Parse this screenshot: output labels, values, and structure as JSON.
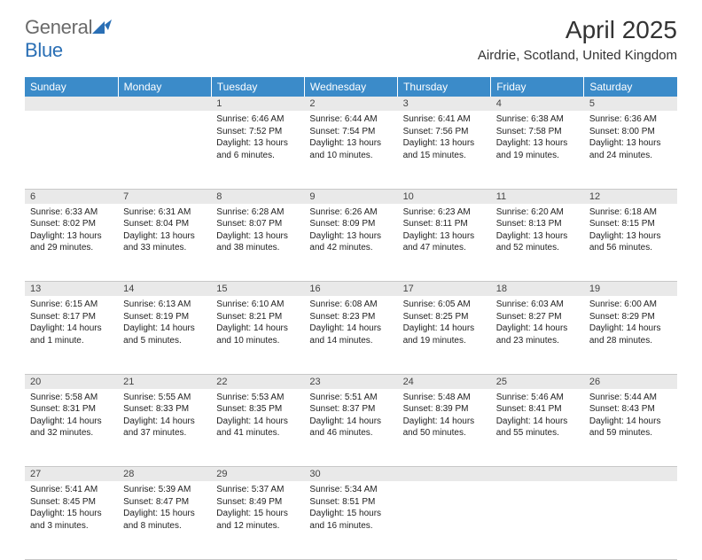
{
  "brand": {
    "part1": "General",
    "part2": "Blue"
  },
  "title": "April 2025",
  "location": "Airdrie, Scotland, United Kingdom",
  "colors": {
    "header_bg": "#3b8bc9",
    "header_text": "#ffffff",
    "daynum_bg": "#e9e9e9",
    "border": "#c8c8c8",
    "brand_gray": "#6a6a6a",
    "brand_blue": "#2a6fb5",
    "text": "#222222"
  },
  "day_headers": [
    "Sunday",
    "Monday",
    "Tuesday",
    "Wednesday",
    "Thursday",
    "Friday",
    "Saturday"
  ],
  "weeks": [
    [
      null,
      null,
      {
        "n": "1",
        "sr": "6:46 AM",
        "ss": "7:52 PM",
        "dl": "13 hours and 6 minutes."
      },
      {
        "n": "2",
        "sr": "6:44 AM",
        "ss": "7:54 PM",
        "dl": "13 hours and 10 minutes."
      },
      {
        "n": "3",
        "sr": "6:41 AM",
        "ss": "7:56 PM",
        "dl": "13 hours and 15 minutes."
      },
      {
        "n": "4",
        "sr": "6:38 AM",
        "ss": "7:58 PM",
        "dl": "13 hours and 19 minutes."
      },
      {
        "n": "5",
        "sr": "6:36 AM",
        "ss": "8:00 PM",
        "dl": "13 hours and 24 minutes."
      }
    ],
    [
      {
        "n": "6",
        "sr": "6:33 AM",
        "ss": "8:02 PM",
        "dl": "13 hours and 29 minutes."
      },
      {
        "n": "7",
        "sr": "6:31 AM",
        "ss": "8:04 PM",
        "dl": "13 hours and 33 minutes."
      },
      {
        "n": "8",
        "sr": "6:28 AM",
        "ss": "8:07 PM",
        "dl": "13 hours and 38 minutes."
      },
      {
        "n": "9",
        "sr": "6:26 AM",
        "ss": "8:09 PM",
        "dl": "13 hours and 42 minutes."
      },
      {
        "n": "10",
        "sr": "6:23 AM",
        "ss": "8:11 PM",
        "dl": "13 hours and 47 minutes."
      },
      {
        "n": "11",
        "sr": "6:20 AM",
        "ss": "8:13 PM",
        "dl": "13 hours and 52 minutes."
      },
      {
        "n": "12",
        "sr": "6:18 AM",
        "ss": "8:15 PM",
        "dl": "13 hours and 56 minutes."
      }
    ],
    [
      {
        "n": "13",
        "sr": "6:15 AM",
        "ss": "8:17 PM",
        "dl": "14 hours and 1 minute."
      },
      {
        "n": "14",
        "sr": "6:13 AM",
        "ss": "8:19 PM",
        "dl": "14 hours and 5 minutes."
      },
      {
        "n": "15",
        "sr": "6:10 AM",
        "ss": "8:21 PM",
        "dl": "14 hours and 10 minutes."
      },
      {
        "n": "16",
        "sr": "6:08 AM",
        "ss": "8:23 PM",
        "dl": "14 hours and 14 minutes."
      },
      {
        "n": "17",
        "sr": "6:05 AM",
        "ss": "8:25 PM",
        "dl": "14 hours and 19 minutes."
      },
      {
        "n": "18",
        "sr": "6:03 AM",
        "ss": "8:27 PM",
        "dl": "14 hours and 23 minutes."
      },
      {
        "n": "19",
        "sr": "6:00 AM",
        "ss": "8:29 PM",
        "dl": "14 hours and 28 minutes."
      }
    ],
    [
      {
        "n": "20",
        "sr": "5:58 AM",
        "ss": "8:31 PM",
        "dl": "14 hours and 32 minutes."
      },
      {
        "n": "21",
        "sr": "5:55 AM",
        "ss": "8:33 PM",
        "dl": "14 hours and 37 minutes."
      },
      {
        "n": "22",
        "sr": "5:53 AM",
        "ss": "8:35 PM",
        "dl": "14 hours and 41 minutes."
      },
      {
        "n": "23",
        "sr": "5:51 AM",
        "ss": "8:37 PM",
        "dl": "14 hours and 46 minutes."
      },
      {
        "n": "24",
        "sr": "5:48 AM",
        "ss": "8:39 PM",
        "dl": "14 hours and 50 minutes."
      },
      {
        "n": "25",
        "sr": "5:46 AM",
        "ss": "8:41 PM",
        "dl": "14 hours and 55 minutes."
      },
      {
        "n": "26",
        "sr": "5:44 AM",
        "ss": "8:43 PM",
        "dl": "14 hours and 59 minutes."
      }
    ],
    [
      {
        "n": "27",
        "sr": "5:41 AM",
        "ss": "8:45 PM",
        "dl": "15 hours and 3 minutes."
      },
      {
        "n": "28",
        "sr": "5:39 AM",
        "ss": "8:47 PM",
        "dl": "15 hours and 8 minutes."
      },
      {
        "n": "29",
        "sr": "5:37 AM",
        "ss": "8:49 PM",
        "dl": "15 hours and 12 minutes."
      },
      {
        "n": "30",
        "sr": "5:34 AM",
        "ss": "8:51 PM",
        "dl": "15 hours and 16 minutes."
      },
      null,
      null,
      null
    ]
  ],
  "labels": {
    "sunrise": "Sunrise:",
    "sunset": "Sunset:",
    "daylight": "Daylight:"
  }
}
